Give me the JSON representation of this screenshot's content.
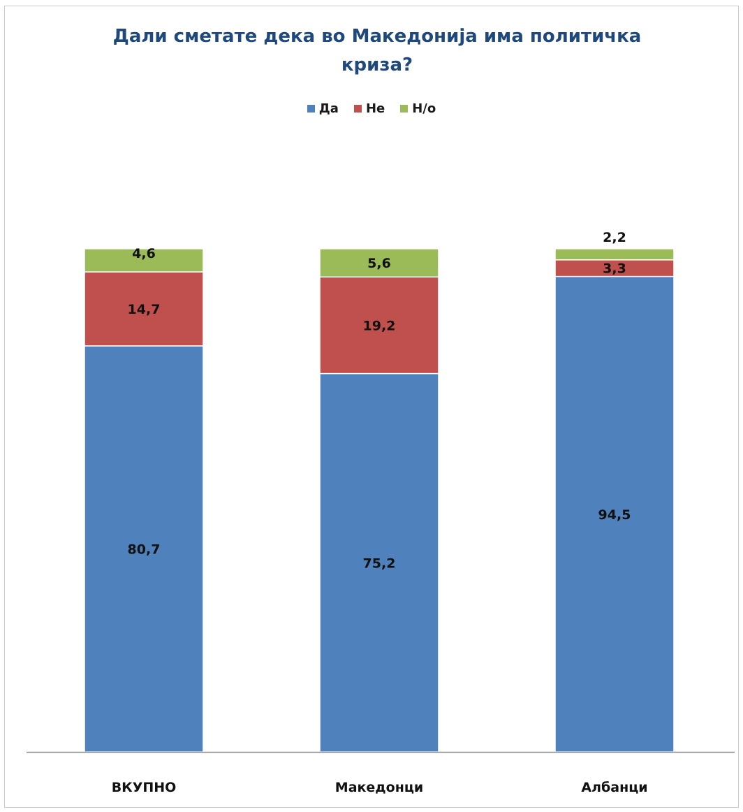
{
  "chart_data": {
    "type": "bar",
    "stacked": true,
    "title_line1": "Дали сметате дека во Македонија има политичка",
    "title_line2": "криза?",
    "categories": [
      "ВКУПНО",
      "Македонци",
      "Албанци"
    ],
    "series": [
      {
        "name": "Да",
        "color": "#4f81bd",
        "values": [
          80.7,
          75.2,
          94.5
        ],
        "labels": [
          "80,7",
          "75,2",
          "94,5"
        ]
      },
      {
        "name": "Не",
        "color": "#c0504d",
        "values": [
          14.7,
          19.2,
          3.3
        ],
        "labels": [
          "14,7",
          "19,2",
          "3,3"
        ]
      },
      {
        "name": "Н/о",
        "color": "#9bbb59",
        "values": [
          4.6,
          5.6,
          2.2
        ],
        "labels": [
          "4,6",
          "5,6",
          "2,2"
        ]
      }
    ],
    "ylim": [
      0,
      100
    ],
    "legend_position": "top",
    "grid": false,
    "xlabel": "",
    "ylabel": ""
  }
}
